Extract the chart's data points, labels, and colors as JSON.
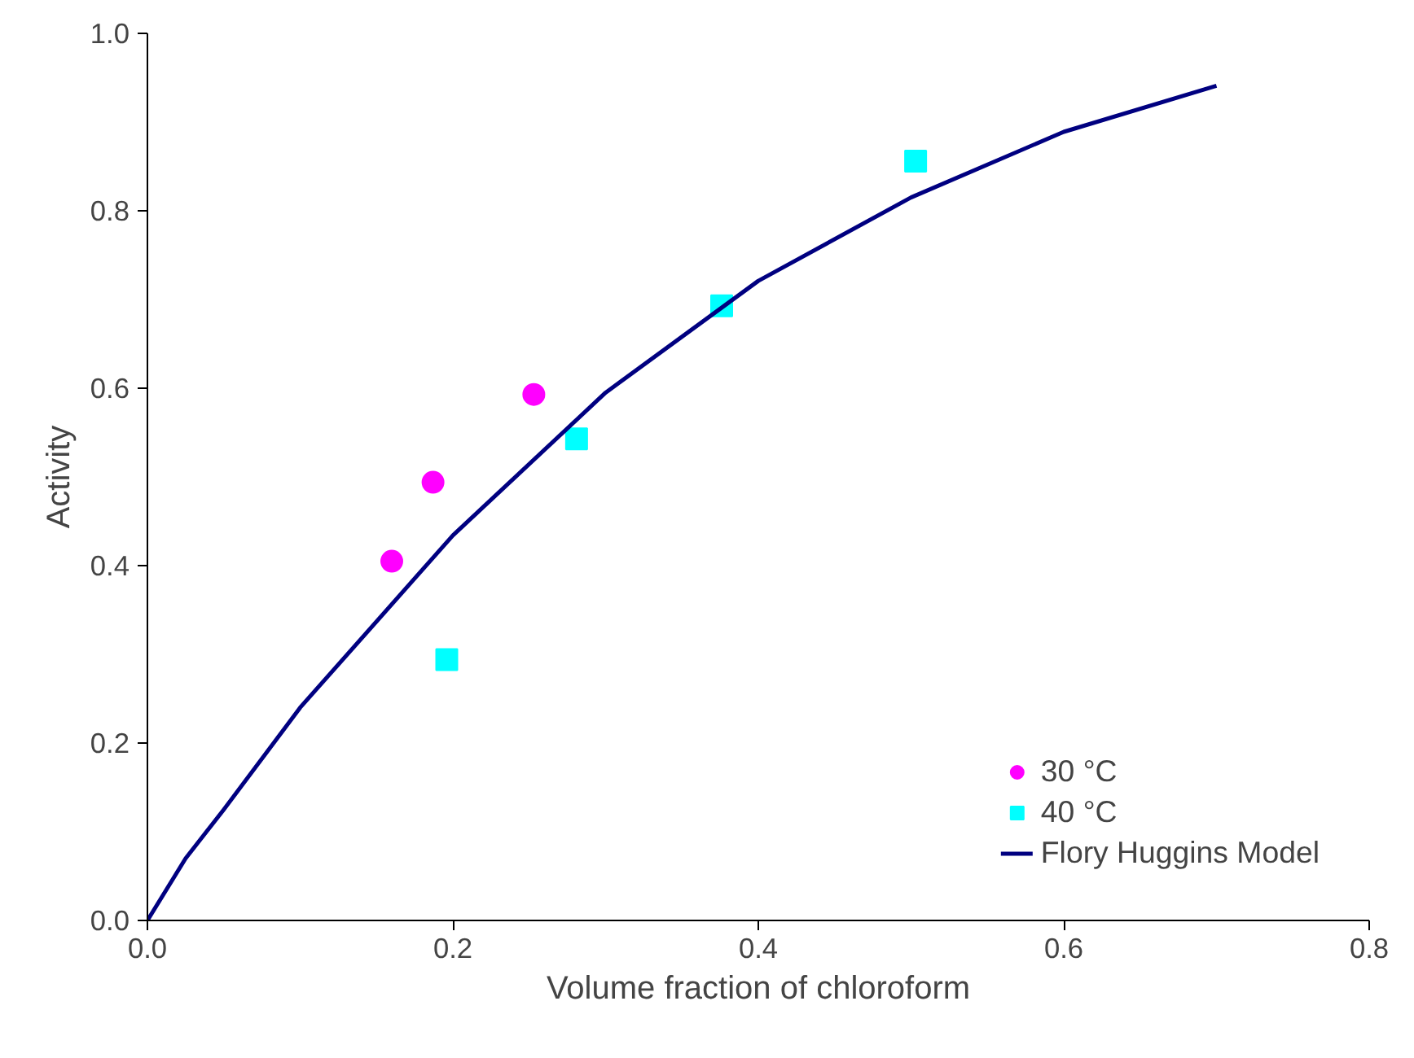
{
  "chart_data": {
    "type": "scatter",
    "xlabel": "Volume fraction of chloroform",
    "ylabel": "Activity",
    "xlim": [
      0,
      0.8
    ],
    "ylim": [
      0,
      1.0
    ],
    "xticks": [
      {
        "value": 0,
        "label": "0.0"
      },
      0.2,
      0.4,
      0.6,
      0.8
    ],
    "yticks": [
      {
        "value": 0,
        "label": "0.0"
      },
      0.2,
      0.4,
      0.6,
      0.8,
      {
        "value": 1,
        "label": "1.0"
      }
    ],
    "grid": false,
    "legend": "bottom right",
    "series": [
      {
        "name": "30 °C",
        "marker": "circle",
        "color": "#ff00ff",
        "x": [
          0.16,
          0.187,
          0.253
        ],
        "values": [
          0.405,
          0.494,
          0.593
        ]
      },
      {
        "name": "40 °C",
        "marker": "square",
        "color": "#00ffff",
        "x": [
          0.196,
          0.281,
          0.376,
          0.503
        ],
        "values": [
          0.294,
          0.543,
          0.693,
          0.856
        ]
      },
      {
        "name": "Flory Huggins Model",
        "type": "line",
        "line_style": "solid",
        "color": "#000080",
        "x": [
          0,
          0.025,
          0.05,
          0.1,
          0.2,
          0.3,
          0.4,
          0.5,
          0.6,
          0.7
        ],
        "values": [
          0,
          0.07,
          0.125,
          0.24,
          0.434,
          0.595,
          0.721,
          0.815,
          0.889,
          0.941
        ]
      }
    ]
  }
}
